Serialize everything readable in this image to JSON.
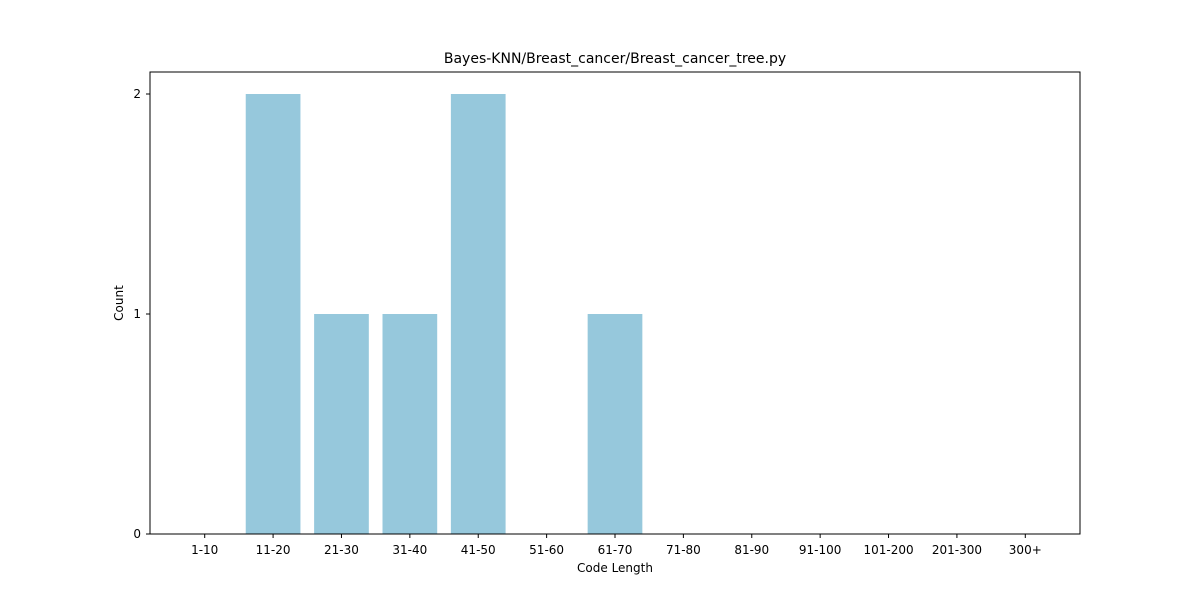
{
  "chart_data": {
    "type": "bar",
    "title": "Bayes-KNN/Breast_cancer/Breast_cancer_tree.py",
    "xlabel": "Code Length",
    "ylabel": "Count",
    "categories": [
      "1-10",
      "11-20",
      "21-30",
      "31-40",
      "41-50",
      "51-60",
      "61-70",
      "71-80",
      "81-90",
      "91-100",
      "101-200",
      "201-300",
      "300+"
    ],
    "values": [
      0,
      2,
      1,
      1,
      2,
      0,
      1,
      0,
      0,
      0,
      0,
      0,
      0
    ],
    "ylim": [
      0,
      2.1
    ],
    "yticks": [
      0,
      1,
      2
    ],
    "grid": false,
    "bar_color": "#96c8dc",
    "axis_color": "#000000"
  }
}
